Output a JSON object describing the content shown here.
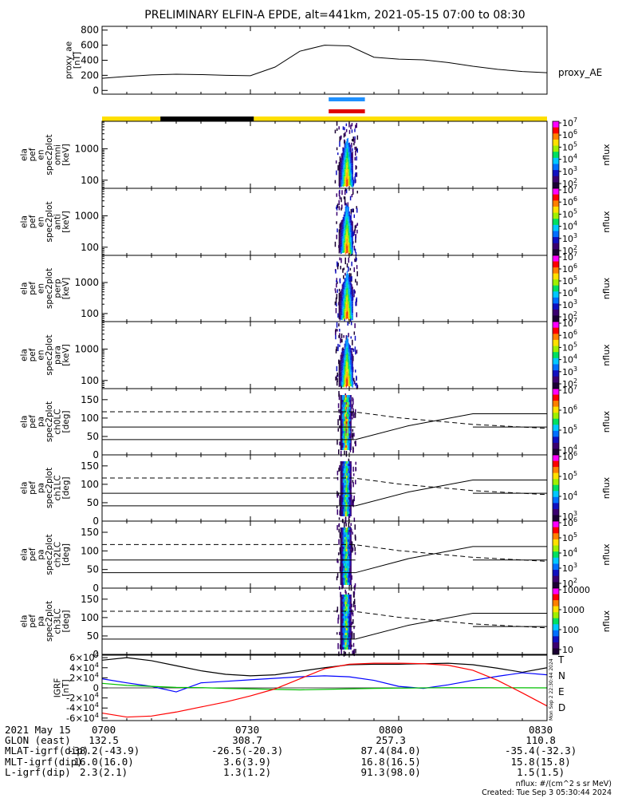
{
  "title": "PRELIMINARY ELFIN-A EPDE, alt=441km, 2021-05-15 07:00 to 08:30",
  "colors": {
    "blue_bar": "#1e90ff",
    "red_bar": "#e00000",
    "yellow": "#ffdf00",
    "T": "#000000",
    "N": "#0000ff",
    "E": "#00c000",
    "D": "#ff0000"
  },
  "chart_data": [
    {
      "type": "line",
      "name": "proxy_ae",
      "ylabel": "proxy_ae [nT]",
      "ytick_labels": [
        "0",
        "200",
        "400",
        "600",
        "800"
      ],
      "ylim": [
        -50,
        850
      ],
      "side_label": "proxy_AE",
      "x_minutes": [
        0,
        5,
        10,
        15,
        20,
        25,
        30,
        35,
        40,
        45,
        50,
        55,
        60,
        65,
        70,
        75,
        80,
        85,
        90
      ],
      "values": [
        160,
        185,
        205,
        215,
        210,
        200,
        195,
        310,
        520,
        600,
        590,
        440,
        415,
        405,
        370,
        320,
        280,
        250,
        235
      ]
    },
    {
      "type": "heatmap",
      "name": "ela_pef_en_spec2plot_omni",
      "ylabel": "ela pef en spec2plot omni [keV]",
      "ytick_labels": [
        "100",
        "1000"
      ],
      "scale": "log",
      "colorbar_label": "nflux",
      "colorbar_ticks": [
        "10^2",
        "10^3",
        "10^4",
        "10^5",
        "10^6",
        "10^7"
      ]
    },
    {
      "type": "heatmap",
      "name": "ela_pef_en_spec2plot_anti",
      "ylabel": "ela pef en spec2plot anti [keV]",
      "ytick_labels": [
        "100",
        "1000"
      ],
      "scale": "log",
      "colorbar_label": "nflux",
      "colorbar_ticks": [
        "10^2",
        "10^3",
        "10^4",
        "10^5",
        "10^6",
        "10^7"
      ]
    },
    {
      "type": "heatmap",
      "name": "ela_pef_en_spec2plot_perp",
      "ylabel": "ela pef en spec2plot perp [keV]",
      "ytick_labels": [
        "100",
        "1000"
      ],
      "scale": "log",
      "colorbar_label": "nflux",
      "colorbar_ticks": [
        "10^2",
        "10^3",
        "10^4",
        "10^5",
        "10^6",
        "10^7"
      ]
    },
    {
      "type": "heatmap",
      "name": "ela_pef_en_spec2plot_para",
      "ylabel": "ela pef en spec2plot para [keV]",
      "ytick_labels": [
        "100",
        "1000"
      ],
      "scale": "log",
      "colorbar_label": "nflux",
      "colorbar_ticks": [
        "10^2",
        "10^3",
        "10^4",
        "10^5",
        "10^6",
        "10^7"
      ]
    },
    {
      "type": "heatmap",
      "name": "ela_pef_pa_spec2plot_ch0LC",
      "ylabel": "ela pef pa spec2plot ch0LC [deg]",
      "ytick_labels": [
        "0",
        "50",
        "100",
        "150"
      ],
      "ylim": [
        0,
        180
      ],
      "colorbar_label": "nflux",
      "colorbar_ticks": [
        "10^4",
        "10^5",
        "10^6",
        "10^7"
      ]
    },
    {
      "type": "heatmap",
      "name": "ela_pef_pa_spec2plot_ch1LC",
      "ylabel": "ela pef pa spec2plot ch1LC [deg]",
      "ytick_labels": [
        "0",
        "50",
        "100",
        "150"
      ],
      "ylim": [
        0,
        180
      ],
      "colorbar_label": "nflux",
      "colorbar_ticks": [
        "10^3",
        "10^4",
        "10^5",
        "10^6"
      ]
    },
    {
      "type": "heatmap",
      "name": "ela_pef_pa_spec2plot_ch2LC",
      "ylabel": "ela pef pa spec2plot ch2LC [deg]",
      "ytick_labels": [
        "0",
        "50",
        "100",
        "150"
      ],
      "ylim": [
        0,
        180
      ],
      "colorbar_label": "nflux",
      "colorbar_ticks": [
        "10^2",
        "10^3",
        "10^4",
        "10^5",
        "10^6"
      ]
    },
    {
      "type": "heatmap",
      "name": "ela_pef_pa_spec2plot_ch3LC",
      "ylabel": "ela pef pa spec2plot ch3LC [deg]",
      "ytick_labels": [
        "0",
        "50",
        "100",
        "150"
      ],
      "ylim": [
        0,
        180
      ],
      "colorbar_label": "nflux",
      "colorbar_ticks": [
        "10",
        "100",
        "1000",
        "10000"
      ]
    },
    {
      "type": "line",
      "name": "IGRF",
      "ylabel": "IGRF [nT]",
      "ytick_labels": [
        "-6×10^4",
        "-4×10^4",
        "-2×10^4",
        "0",
        "2×10^4",
        "4×10^4",
        "6×10^4"
      ],
      "ylim": [
        -65000,
        65000
      ],
      "x_minutes": [
        0,
        5,
        10,
        15,
        20,
        25,
        30,
        35,
        40,
        45,
        50,
        55,
        60,
        65,
        70,
        75,
        80,
        85,
        90
      ],
      "series": [
        {
          "name": "T",
          "values": [
            55000,
            60000,
            54000,
            44000,
            34000,
            27000,
            24000,
            26000,
            33000,
            40000,
            46000,
            47000,
            47000,
            48000,
            49000,
            46000,
            39000,
            31000,
            40000
          ]
        },
        {
          "name": "N",
          "values": [
            18000,
            10000,
            3000,
            -8000,
            10000,
            13000,
            16000,
            19000,
            22000,
            24000,
            22000,
            15000,
            3000,
            -1000,
            6000,
            15000,
            23000,
            30000,
            26000
          ]
        },
        {
          "name": "E",
          "values": [
            9000,
            5000,
            3000,
            1000,
            500,
            -1000,
            -2000,
            -3000,
            -4000,
            -3000,
            -2000,
            -1000,
            -500,
            0,
            500,
            500,
            300,
            200,
            0
          ]
        },
        {
          "name": "D",
          "values": [
            -50000,
            -58000,
            -56000,
            -48000,
            -38000,
            -28000,
            -16000,
            -2000,
            18000,
            38000,
            47000,
            49000,
            49000,
            48000,
            45000,
            35000,
            15000,
            -10000,
            -36000
          ]
        }
      ],
      "legend": [
        "T",
        "N",
        "E",
        "D"
      ]
    }
  ],
  "time_axis": {
    "ticks": [
      "0700",
      "0730",
      "0800",
      "0830"
    ],
    "minor_ticks_per_major": 6
  },
  "orbit_bar": {
    "segments": [
      {
        "color": "yellow",
        "from": 0,
        "to": 11.8
      },
      {
        "color": "black",
        "from": 11.8,
        "to": 30.7
      },
      {
        "color": "yellow",
        "from": 30.7,
        "to": 90
      }
    ]
  },
  "science_zone": {
    "start_min": 46,
    "end_min": 53
  },
  "footer": {
    "rows": [
      {
        "label": "2021 May 15",
        "values": [
          "0700",
          "0730",
          "0800",
          "0830"
        ]
      },
      {
        "label": "GLON (east)",
        "values": [
          "132.5",
          "308.7",
          "257.3",
          "110.8"
        ]
      },
      {
        "label": "MLAT-igrf(dip)",
        "values": [
          "-38.2(-43.9)",
          "-26.5(-20.3)",
          "87.4(84.0)",
          "-35.4(-32.3)"
        ]
      },
      {
        "label": "MLT-igrf(dip)",
        "values": [
          "16.0(16.0)",
          "3.6(3.9)",
          "16.8(16.5)",
          "15.8(15.8)"
        ]
      },
      {
        "label": "L-igrf(dip)",
        "values": [
          "2.3(2.1)",
          "1.3(1.2)",
          "91.3(98.0)",
          "1.5(1.5)"
        ]
      }
    ],
    "units_note": "nflux: #/(cm^2 s sr MeV)",
    "created": "Created: Tue Sep  3 05:30:44 2024",
    "vertical_stamp": "Mon Sep  2 22:30:44 2024"
  }
}
